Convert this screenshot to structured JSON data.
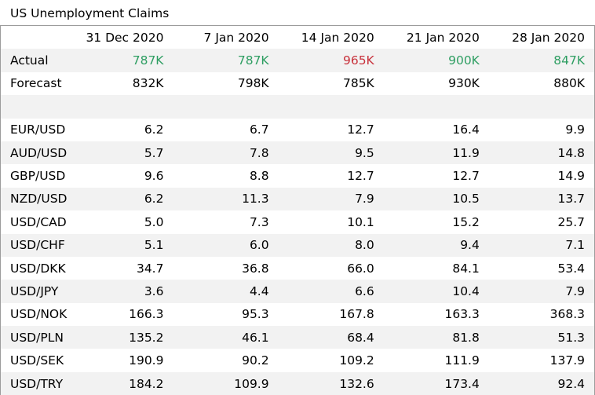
{
  "chart_data": {
    "type": "table",
    "title": "US Unemployment Claims",
    "columns": [
      "",
      "31 Dec 2020",
      "7 Jan 2020",
      "14 Jan 2020",
      "21 Jan 2020",
      "28 Jan 2020"
    ],
    "actual": {
      "label": "Actual",
      "values": [
        "787K",
        "787K",
        "965K",
        "900K",
        "847K"
      ],
      "status": [
        "positive",
        "positive",
        "negative",
        "positive",
        "positive"
      ]
    },
    "forecast": {
      "label": "Forecast",
      "values": [
        "832K",
        "798K",
        "785K",
        "930K",
        "880K"
      ]
    },
    "pairs": [
      {
        "label": "EUR/USD",
        "values": [
          "6.2",
          "6.7",
          "12.7",
          "16.4",
          "9.9"
        ]
      },
      {
        "label": "AUD/USD",
        "values": [
          "5.7",
          "7.8",
          "9.5",
          "11.9",
          "14.8"
        ]
      },
      {
        "label": "GBP/USD",
        "values": [
          "9.6",
          "8.8",
          "12.7",
          "12.7",
          "14.9"
        ]
      },
      {
        "label": "NZD/USD",
        "values": [
          "6.2",
          "11.3",
          "7.9",
          "10.5",
          "13.7"
        ]
      },
      {
        "label": "USD/CAD",
        "values": [
          "5.0",
          "7.3",
          "10.1",
          "15.2",
          "25.7"
        ]
      },
      {
        "label": "USD/CHF",
        "values": [
          "5.1",
          "6.0",
          "8.0",
          "9.4",
          "7.1"
        ]
      },
      {
        "label": "USD/DKK",
        "values": [
          "34.7",
          "36.8",
          "66.0",
          "84.1",
          "53.4"
        ]
      },
      {
        "label": "USD/JPY",
        "values": [
          "3.6",
          "4.4",
          "6.6",
          "10.4",
          "7.9"
        ]
      },
      {
        "label": "USD/NOK",
        "values": [
          "166.3",
          "95.3",
          "167.8",
          "163.3",
          "368.3"
        ]
      },
      {
        "label": "USD/PLN",
        "values": [
          "135.2",
          "46.1",
          "68.4",
          "81.8",
          "51.3"
        ]
      },
      {
        "label": "USD/SEK",
        "values": [
          "190.9",
          "90.2",
          "109.2",
          "111.9",
          "137.9"
        ]
      },
      {
        "label": "USD/TRY",
        "values": [
          "184.2",
          "109.9",
          "132.6",
          "173.4",
          "92.4"
        ]
      }
    ]
  },
  "colors": {
    "positive": "#2e9e62",
    "negative": "#c8323c",
    "stripe": "#f2f2f2",
    "border": "#9c9c9c"
  }
}
